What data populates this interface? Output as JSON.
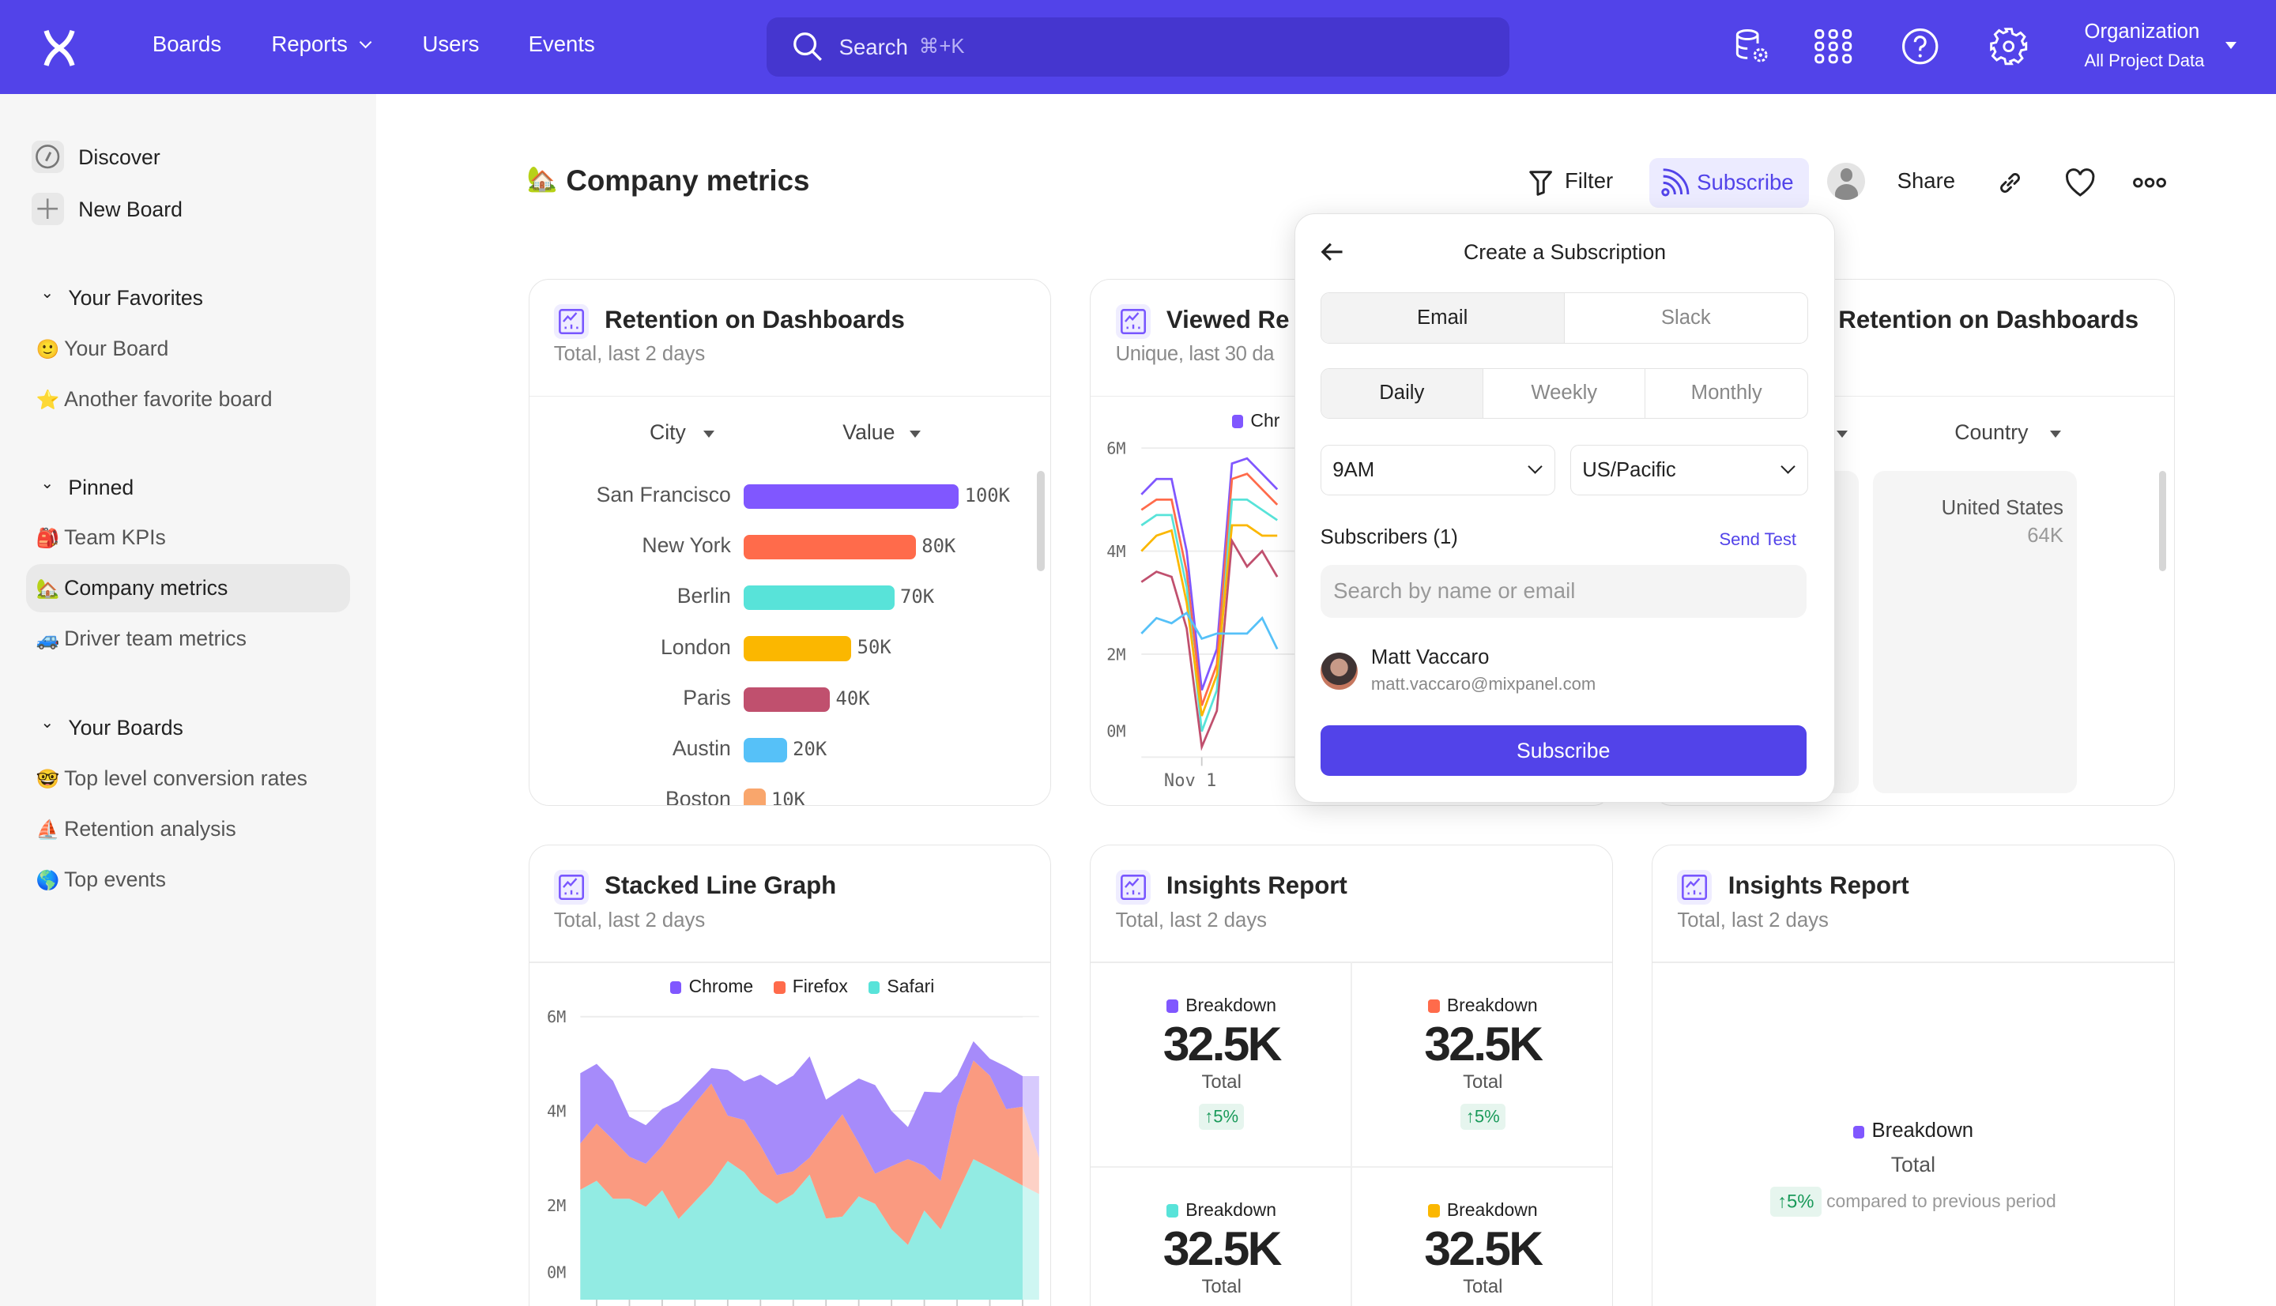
{
  "topbar": {
    "logo": "mixpanel-logo",
    "nav": [
      {
        "label": "Boards"
      },
      {
        "label": "Reports"
      },
      {
        "label": "Users"
      },
      {
        "label": "Events"
      }
    ],
    "search": {
      "placeholder": "Search",
      "shortcut": "⌘+K"
    },
    "icons": [
      "data-gear-icon",
      "apps-grid-icon",
      "help-icon",
      "settings-gear-icon"
    ],
    "org": {
      "title": "Organization",
      "project": "All Project Data"
    },
    "color": "#5243e9"
  },
  "sidebar": {
    "top": [
      {
        "label": "Discover",
        "icon": "compass-icon"
      },
      {
        "label": "New Board",
        "icon": "plus-icon"
      }
    ],
    "favorites": {
      "title": "Your Favorites",
      "items": [
        {
          "emoji": "🙂",
          "label": "Your Board"
        },
        {
          "emoji": "⭐",
          "label": "Another favorite board"
        }
      ]
    },
    "pinned": {
      "title": "Pinned",
      "items": [
        {
          "emoji": "🎒",
          "label": "Team KPIs"
        },
        {
          "emoji": "🏡",
          "label": "Company metrics",
          "active": true
        },
        {
          "emoji": "🚙",
          "label": "Driver team metrics"
        }
      ]
    },
    "boards": {
      "title": "Your Boards",
      "items": [
        {
          "emoji": "🤓",
          "label": "Top level conversion rates"
        },
        {
          "emoji": "⛵",
          "label": "Retention analysis"
        },
        {
          "emoji": "🌎",
          "label": "Top events"
        }
      ]
    }
  },
  "page": {
    "emoji": "🏡",
    "title": "Company metrics"
  },
  "toolbar": {
    "filter": "Filter",
    "subscribe": "Subscribe",
    "share": "Share",
    "icons": [
      "filter-icon",
      "rss-icon",
      "avatar",
      "link-icon",
      "heart-icon",
      "more-icon"
    ]
  },
  "cards": {
    "retention": {
      "title": "Retention on Dashboards",
      "subtitle": "Total, last 2 days",
      "col1": "City",
      "col2": "Value"
    },
    "viewed": {
      "title": "Viewed Re",
      "subtitle": "Unique, last 30 da",
      "legend": "Chr"
    },
    "retention2": {
      "title": "Retention on Dashboards",
      "col2": "Country",
      "cell_label": "United States",
      "cell_value": "64K"
    },
    "stacked": {
      "title": "Stacked Line Graph",
      "subtitle": "Total, last 2 days"
    },
    "insights1": {
      "title": "Insights Report",
      "subtitle": "Total, last 2 days",
      "cells": [
        {
          "label": "Breakdown",
          "value": "32.5K",
          "caption": "Total",
          "change": "↑5%",
          "color": "#8057ff"
        },
        {
          "label": "Breakdown",
          "value": "32.5K",
          "caption": "Total",
          "change": "↑5%",
          "color": "#ff6b4b"
        },
        {
          "label": "Breakdown",
          "value": "32.5K",
          "caption": "Total",
          "color": "#58e3d9"
        },
        {
          "label": "Breakdown",
          "value": "32.5K",
          "caption": "Total",
          "color": "#fbb700"
        }
      ]
    },
    "insights2": {
      "title": "Insights Report",
      "subtitle": "Total, last 2 days",
      "label": "Breakdown",
      "caption": "Total",
      "change": "↑5%",
      "compare": "compared to previous period",
      "color": "#8057ff"
    }
  },
  "popover": {
    "title": "Create a Subscription",
    "channels": [
      {
        "label": "Email",
        "selected": true
      },
      {
        "label": "Slack"
      }
    ],
    "frequency": [
      {
        "label": "Daily",
        "selected": true
      },
      {
        "label": "Weekly"
      },
      {
        "label": "Monthly"
      }
    ],
    "time": "9AM",
    "timezone": "US/Pacific",
    "subscribers_label": "Subscribers (1)",
    "send_test": "Send Test",
    "search_placeholder": "Search by name or email",
    "subscriber": {
      "name": "Matt Vaccaro",
      "email": "matt.vaccaro@mixpanel.com"
    },
    "submit": "Subscribe"
  },
  "chart_data": [
    {
      "type": "bar",
      "orientation": "horizontal",
      "categories": [
        "San Francisco",
        "New York",
        "Berlin",
        "London",
        "Paris",
        "Austin",
        "Boston"
      ],
      "values": [
        100,
        80,
        70,
        50,
        40,
        20,
        10
      ],
      "value_labels": [
        "100K",
        "80K",
        "70K",
        "50K",
        "40K",
        "20K",
        "10K"
      ],
      "colors": [
        "#8057ff",
        "#ff6b4b",
        "#58e3d9",
        "#fbb700",
        "#c0506e",
        "#56c1f8",
        "#f9a66c"
      ],
      "xlim": [
        0,
        100
      ]
    },
    {
      "type": "line",
      "ylim": [
        0,
        6
      ],
      "yticks": [
        "0M",
        "2M",
        "4M",
        "6M"
      ],
      "xtick": "Nov 1",
      "xtick_index": 4,
      "series": [
        {
          "color": "#8057ff",
          "values": [
            5.1,
            5.4,
            5.4,
            4.0,
            1.3,
            2.1,
            5.7,
            5.8,
            5.5,
            5.2
          ]
        },
        {
          "color": "#ff6b4b",
          "values": [
            4.8,
            5.0,
            5.0,
            3.6,
            1.0,
            1.8,
            5.4,
            5.5,
            5.2,
            4.9
          ]
        },
        {
          "color": "#58e3d9",
          "values": [
            4.5,
            4.7,
            4.7,
            3.3,
            0.5,
            1.3,
            5.0,
            5.0,
            4.8,
            4.6
          ]
        },
        {
          "color": "#fbb700",
          "values": [
            4.0,
            4.3,
            4.4,
            3.0,
            0.8,
            1.6,
            4.5,
            4.5,
            4.3,
            4.3
          ]
        },
        {
          "color": "#c0506e",
          "values": [
            3.4,
            3.6,
            3.5,
            2.5,
            0.2,
            0.9,
            4.2,
            3.7,
            4.0,
            3.5
          ]
        },
        {
          "color": "#56c1f8",
          "values": [
            2.4,
            2.7,
            2.6,
            2.8,
            2.3,
            2.4,
            2.4,
            2.4,
            2.7,
            2.1
          ]
        }
      ]
    },
    {
      "type": "area",
      "stacked": true,
      "ylim": [
        0,
        6
      ],
      "yticks": [
        "0M",
        "2M",
        "4M",
        "6M"
      ],
      "legend": "top",
      "series": [
        {
          "name": "Safari",
          "color": "#92ebe3",
          "values": [
            2.33,
            2.52,
            2.14,
            2.14,
            1.97,
            2.32,
            1.71,
            2.08,
            2.45,
            2.94,
            2.7,
            2.27,
            2.03,
            2.24,
            2.65,
            1.72,
            1.76,
            2.19,
            2.03,
            1.49,
            1.16,
            1.89,
            1.49,
            2.24,
            2.98,
            2.8,
            2.61,
            2.42,
            2.24
          ]
        },
        {
          "name": "Firefox",
          "color": "#fa9a80",
          "values": [
            0.98,
            1.21,
            1.25,
            0.89,
            0.91,
            0.94,
            2.02,
            2.08,
            2.13,
            0.96,
            1.11,
            1.0,
            0.61,
            0.48,
            0.36,
            1.76,
            2.17,
            1.13,
            0.64,
            1.34,
            1.82,
            0.95,
            1.03,
            1.86,
            2.09,
            1.95,
            1.43,
            1.67,
            0.77
          ]
        },
        {
          "name": "Chrome",
          "color": "#a68bfa",
          "values": [
            1.49,
            1.27,
            1.25,
            0.85,
            0.82,
            0.78,
            0.48,
            0.39,
            0.33,
            0.97,
            0.82,
            1.5,
            1.91,
            2.03,
            2.15,
            0.76,
            0.54,
            1.37,
            1.88,
            1.17,
            0.68,
            1.57,
            1.87,
            0.65,
            0.41,
            0.36,
            0.9,
            0.65,
            1.73
          ]
        }
      ],
      "legend_colors": [
        "#8057ff",
        "#ff6b4b",
        "#58e3d9"
      ]
    }
  ]
}
